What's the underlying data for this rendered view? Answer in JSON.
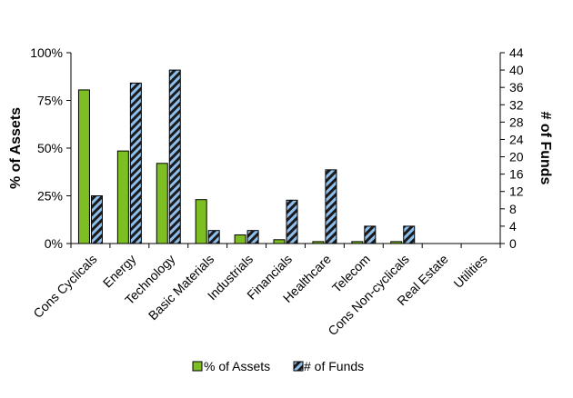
{
  "chart_data": {
    "type": "bar",
    "categories": [
      "Cons Cyclicals",
      "Energy",
      "Technology",
      "Basic Materials",
      "Industrials",
      "Financials",
      "Healthcare",
      "Telecom",
      "Cons Non-cyclicals",
      "Real Estate",
      "Utilities"
    ],
    "series": [
      {
        "name": "% of Assets",
        "axis": "left",
        "color": "#7dbe22",
        "values": [
          80.5,
          48.5,
          42.0,
          23.0,
          4.5,
          2.0,
          1.0,
          1.0,
          1.0,
          0,
          0
        ]
      },
      {
        "name": "# of Funds",
        "axis": "right",
        "color": "#6fa8dc",
        "pattern": "diagonal-stripes",
        "values": [
          11,
          37,
          40,
          3,
          3,
          10,
          17,
          4,
          4,
          0,
          0
        ]
      }
    ],
    "ylabel": "% of Assets",
    "y2label": "# of Funds",
    "ylim": [
      0,
      100
    ],
    "y2lim": [
      0,
      44
    ],
    "yticks": [
      "0%",
      "25%",
      "50%",
      "75%",
      "100%"
    ],
    "y2ticks": [
      "0",
      "4",
      "8",
      "12",
      "16",
      "20",
      "24",
      "28",
      "32",
      "36",
      "40",
      "44"
    ],
    "legend_position": "bottom",
    "grid": false
  }
}
